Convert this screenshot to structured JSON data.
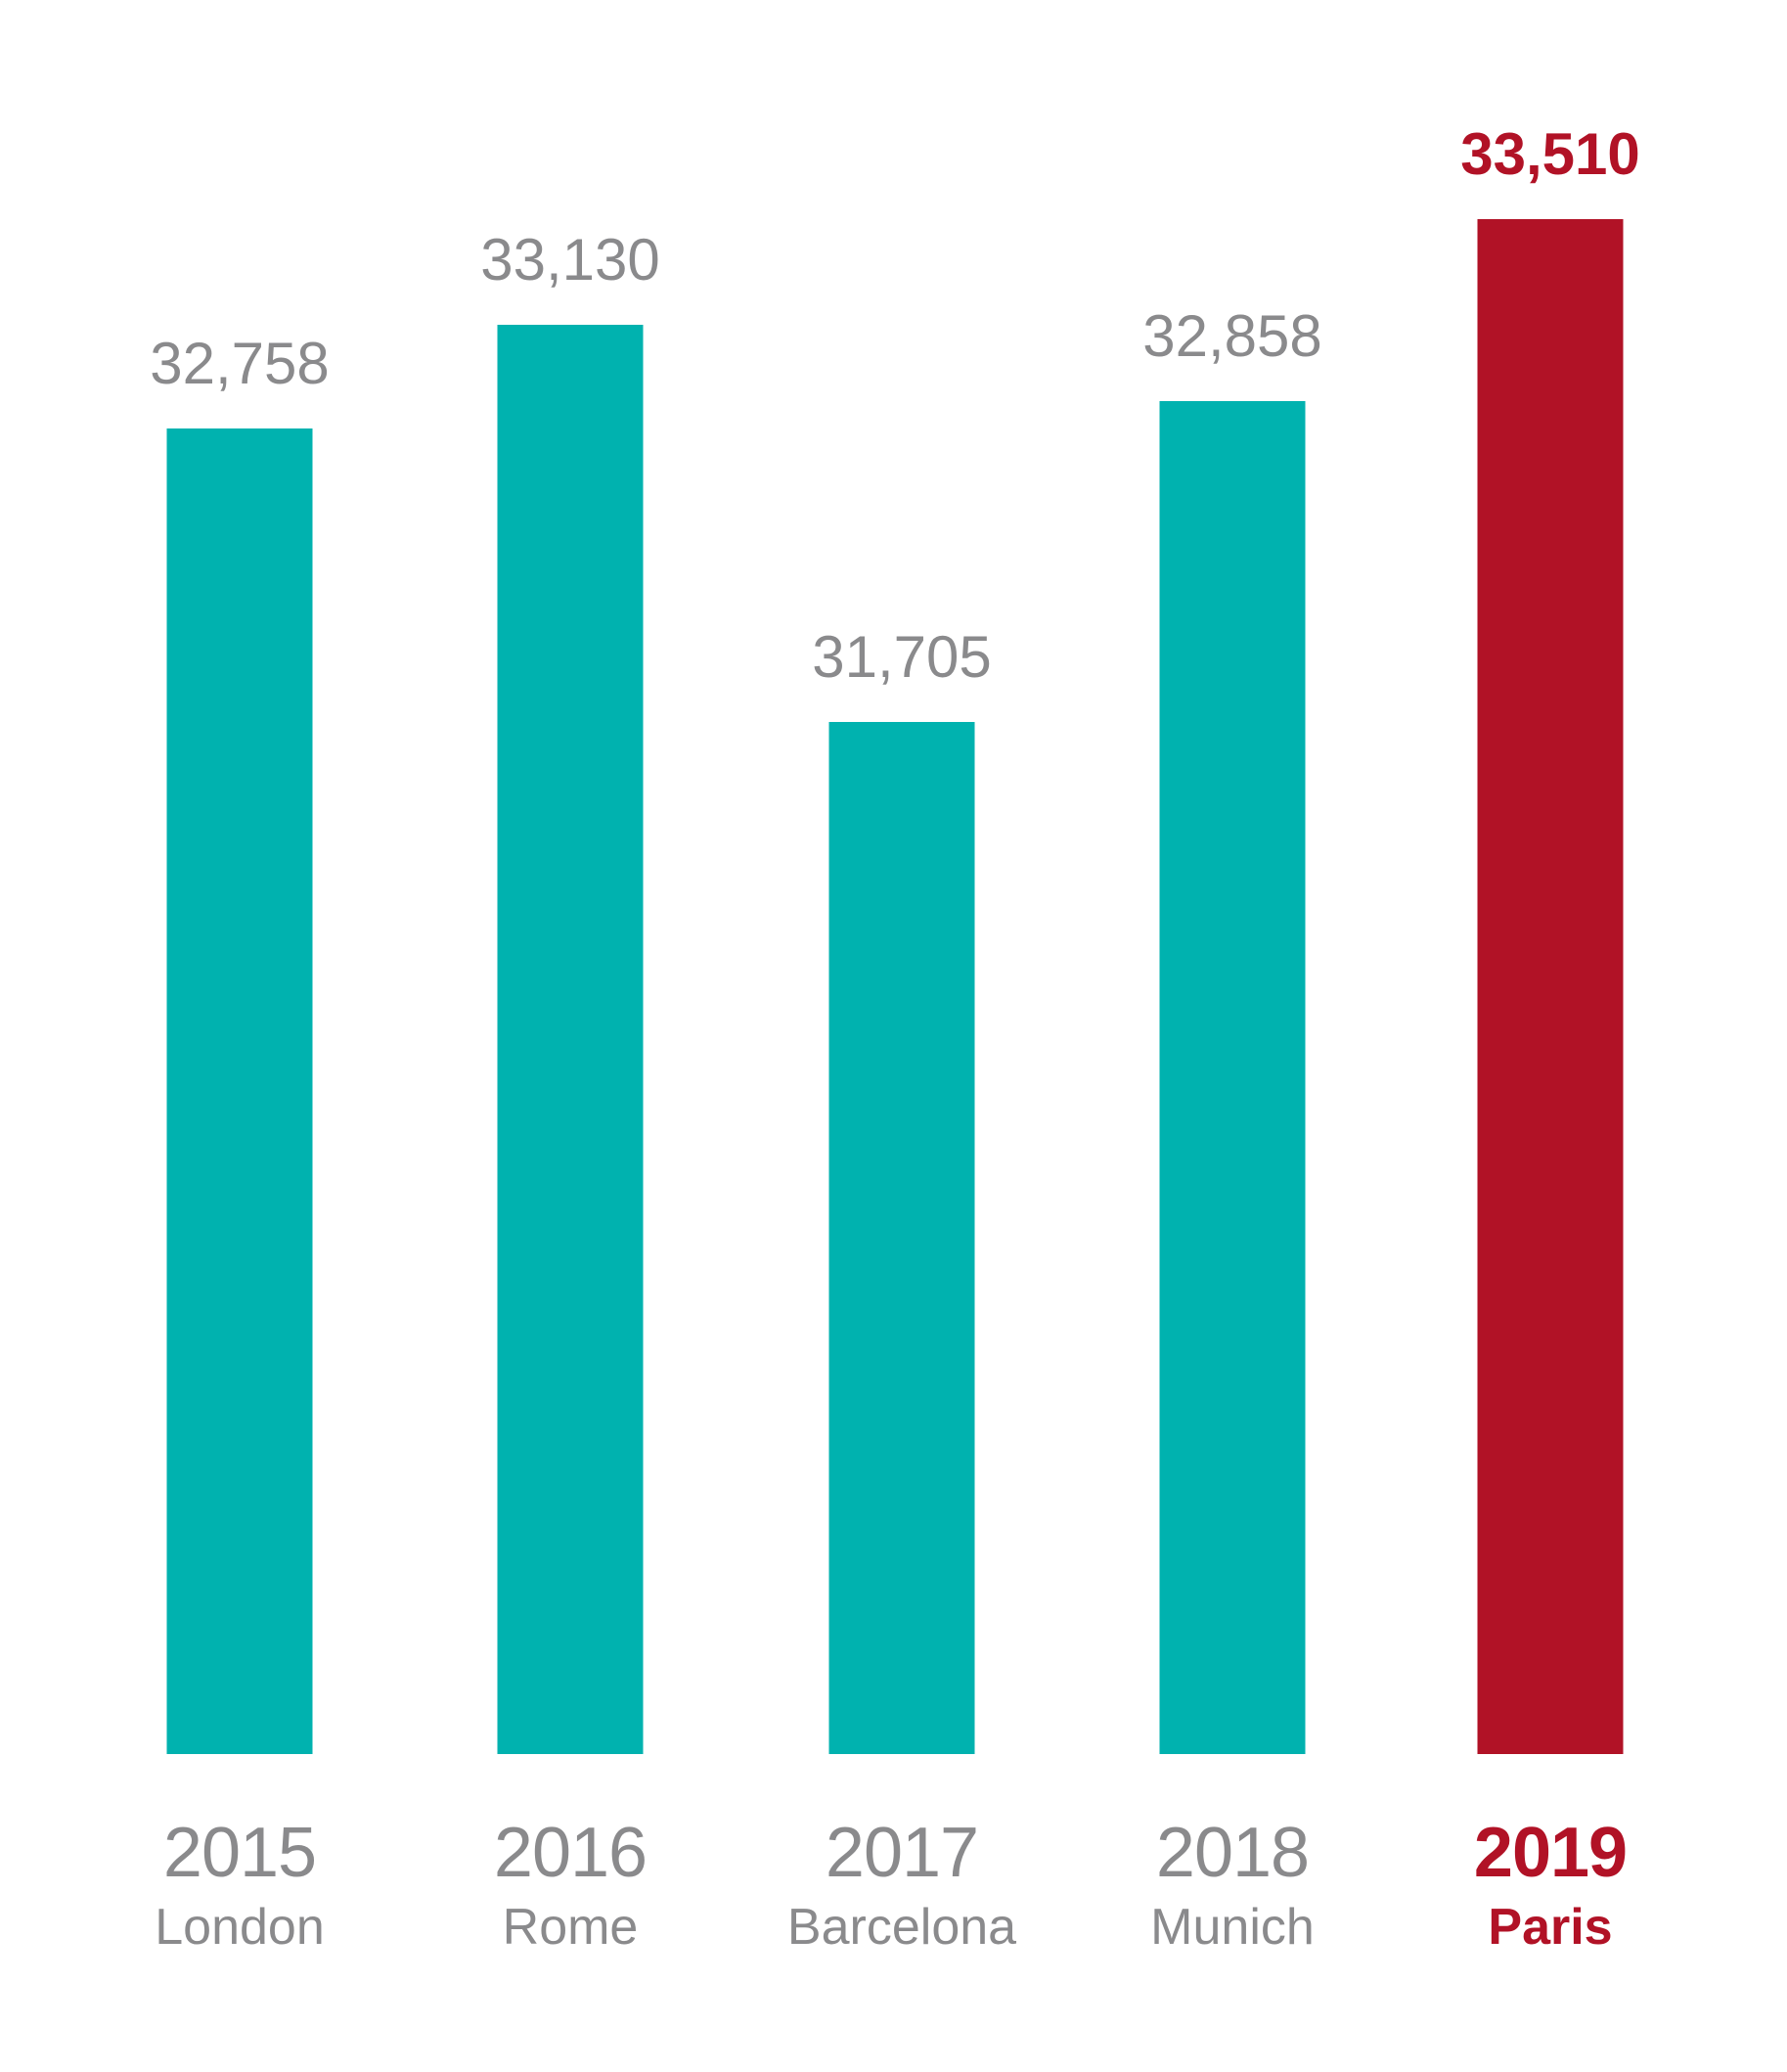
{
  "chart_data": {
    "type": "bar",
    "title": "",
    "xlabel": "",
    "ylabel": "",
    "categories": [
      "2015",
      "2016",
      "2017",
      "2018",
      "2019"
    ],
    "cities": [
      "London",
      "Rome",
      "Barcelona",
      "Munich",
      "Paris"
    ],
    "values": [
      32758,
      33130,
      31705,
      32858,
      33510
    ],
    "value_labels": [
      "32,758",
      "33,130",
      "31,705",
      "32,858",
      "33,510"
    ],
    "highlight_index": 4,
    "ylim": [
      28000,
      33510
    ],
    "grid": false,
    "legend": false,
    "colors": {
      "bar": "#00B2AF",
      "highlight": "#B11226",
      "text": "#8A8A8C",
      "background": "#FFFFFF"
    }
  }
}
